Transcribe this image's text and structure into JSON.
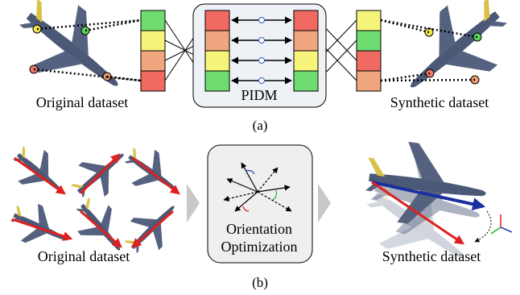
{
  "panel_a": {
    "left_label": "Original dataset",
    "center_label": "PIDM",
    "right_label": "Synthetic dataset",
    "caption": "(a)"
  },
  "panel_b": {
    "left_label": "Original dataset",
    "center_label": [
      "Orientation",
      "Optimization"
    ],
    "right_label": "Synthetic dataset",
    "caption": "(b)"
  }
}
